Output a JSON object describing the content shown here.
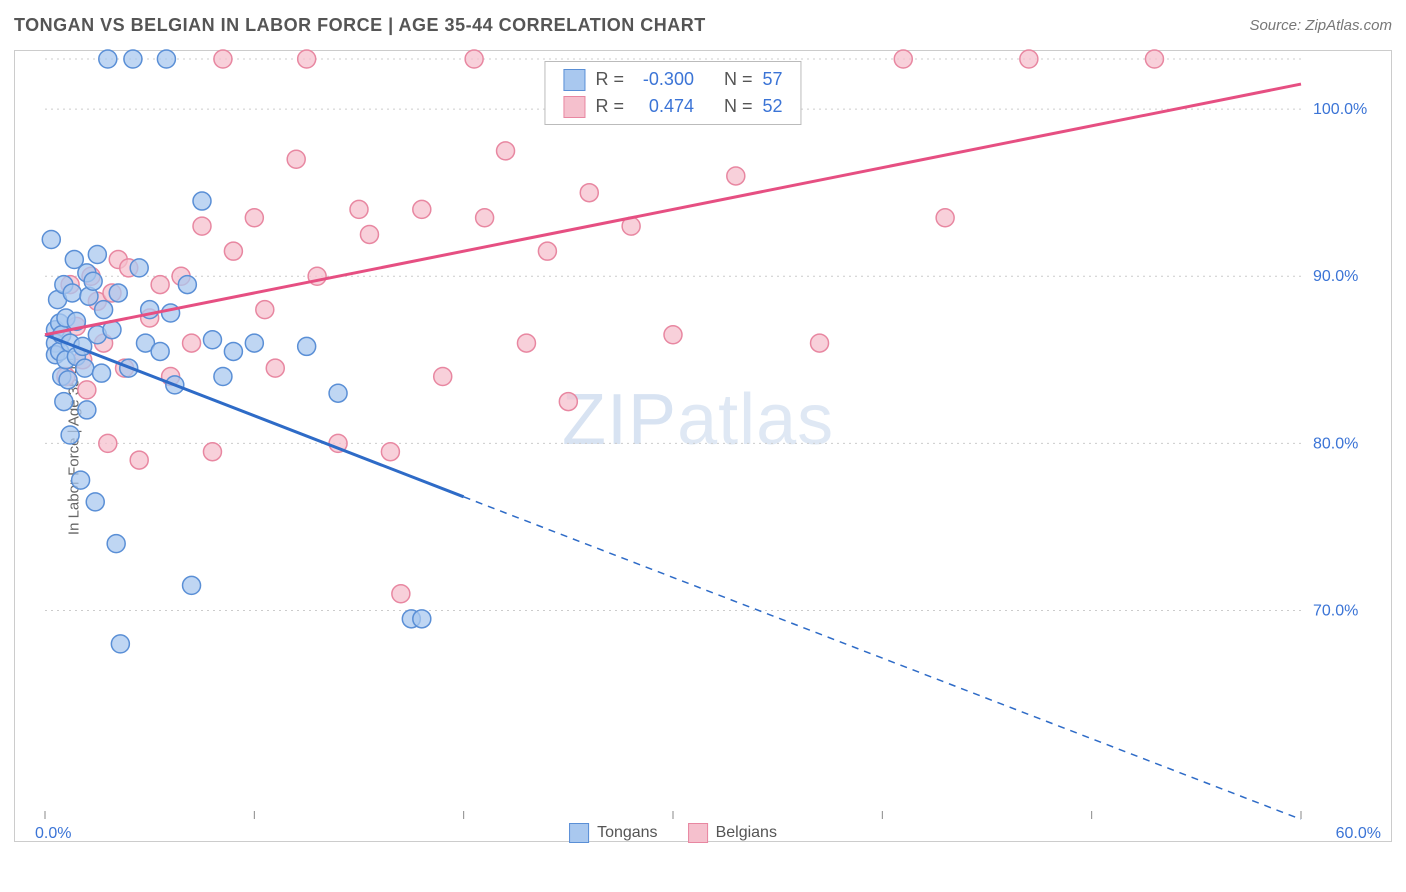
{
  "header": {
    "title": "TONGAN VS BELGIAN IN LABOR FORCE | AGE 35-44 CORRELATION CHART",
    "source": "Source: ZipAtlas.com"
  },
  "chart": {
    "type": "scatter",
    "ylabel": "In Labor Force | Age 35-44",
    "watermark_a": "ZIP",
    "watermark_b": "atlas",
    "xlim": [
      0,
      60
    ],
    "ylim": [
      58,
      103
    ],
    "x_ticks": [
      0,
      10,
      20,
      30,
      40,
      50,
      60
    ],
    "x_tick_labels": [
      "0.0%",
      "",
      "",
      "",
      "",
      "",
      "60.0%"
    ],
    "y_grid": [
      70,
      80,
      90,
      100,
      103
    ],
    "y_grid_labels": [
      "70.0%",
      "80.0%",
      "90.0%",
      "100.0%",
      ""
    ],
    "background_color": "#ffffff",
    "grid_color": "#cccccc",
    "marker_radius": 9,
    "marker_stroke_width": 1.5,
    "line_width": 3,
    "series": {
      "tongans": {
        "label": "Tongans",
        "fill": "#a9c8ef",
        "stroke": "#5a8fd6",
        "line_color": "#2e6bc7",
        "R_label": "R =",
        "R": "-0.300",
        "N_label": "N =",
        "N": "57",
        "trend": {
          "x1": 0,
          "y1": 86.5,
          "x2_solid": 20,
          "y2_solid": 76.8,
          "x2_dash": 60,
          "y2_dash": 57.5
        },
        "points": [
          [
            0.3,
            92.2
          ],
          [
            0.5,
            86.8
          ],
          [
            0.5,
            86.0
          ],
          [
            0.5,
            85.3
          ],
          [
            0.6,
            88.6
          ],
          [
            0.7,
            85.5
          ],
          [
            0.7,
            87.2
          ],
          [
            0.8,
            84.0
          ],
          [
            0.8,
            86.5
          ],
          [
            0.9,
            82.5
          ],
          [
            0.9,
            89.5
          ],
          [
            1.0,
            85.0
          ],
          [
            1.0,
            87.5
          ],
          [
            1.1,
            83.8
          ],
          [
            1.2,
            80.5
          ],
          [
            1.2,
            86.0
          ],
          [
            1.3,
            89.0
          ],
          [
            1.4,
            91.0
          ],
          [
            1.5,
            85.2
          ],
          [
            1.5,
            87.3
          ],
          [
            1.7,
            77.8
          ],
          [
            1.8,
            85.8
          ],
          [
            1.9,
            84.5
          ],
          [
            2.0,
            90.2
          ],
          [
            2.0,
            82.0
          ],
          [
            2.1,
            88.8
          ],
          [
            2.3,
            89.7
          ],
          [
            2.4,
            76.5
          ],
          [
            2.5,
            86.5
          ],
          [
            2.5,
            91.3
          ],
          [
            2.7,
            84.2
          ],
          [
            2.8,
            88.0
          ],
          [
            3.0,
            103.0
          ],
          [
            3.2,
            86.8
          ],
          [
            3.4,
            74.0
          ],
          [
            3.5,
            89.0
          ],
          [
            3.6,
            68.0
          ],
          [
            4.0,
            84.5
          ],
          [
            4.2,
            103.0
          ],
          [
            4.5,
            90.5
          ],
          [
            4.8,
            86.0
          ],
          [
            5.0,
            88.0
          ],
          [
            5.5,
            85.5
          ],
          [
            5.8,
            103.0
          ],
          [
            6.0,
            87.8
          ],
          [
            6.2,
            83.5
          ],
          [
            6.8,
            89.5
          ],
          [
            7.0,
            71.5
          ],
          [
            7.5,
            94.5
          ],
          [
            8.0,
            86.2
          ],
          [
            8.5,
            84.0
          ],
          [
            9.0,
            85.5
          ],
          [
            10.0,
            86.0
          ],
          [
            12.5,
            85.8
          ],
          [
            17.5,
            69.5
          ],
          [
            18.0,
            69.5
          ],
          [
            14.0,
            83.0
          ]
        ]
      },
      "belgians": {
        "label": "Belgians",
        "fill": "#f5c0cd",
        "stroke": "#e887a1",
        "line_color": "#e64f82",
        "R_label": "R =",
        "R": "0.474",
        "N_label": "N =",
        "N": "52",
        "trend": {
          "x1": 0,
          "y1": 86.5,
          "x2_solid": 60,
          "y2_solid": 101.5,
          "x2_dash": 60,
          "y2_dash": 101.5
        },
        "points": [
          [
            0.8,
            86.5
          ],
          [
            1.0,
            84.0
          ],
          [
            1.2,
            89.5
          ],
          [
            1.5,
            87.0
          ],
          [
            1.8,
            85.0
          ],
          [
            2.0,
            83.2
          ],
          [
            2.2,
            90.0
          ],
          [
            2.5,
            88.5
          ],
          [
            2.8,
            86.0
          ],
          [
            3.0,
            80.0
          ],
          [
            3.2,
            89.0
          ],
          [
            3.5,
            91.0
          ],
          [
            3.8,
            84.5
          ],
          [
            4.0,
            90.5
          ],
          [
            4.5,
            79.0
          ],
          [
            5.0,
            87.5
          ],
          [
            5.5,
            89.5
          ],
          [
            6.0,
            84.0
          ],
          [
            6.5,
            90.0
          ],
          [
            7.0,
            86.0
          ],
          [
            7.5,
            93.0
          ],
          [
            8.0,
            79.5
          ],
          [
            8.5,
            103.0
          ],
          [
            9.0,
            91.5
          ],
          [
            10.0,
            93.5
          ],
          [
            10.5,
            88.0
          ],
          [
            11.0,
            84.5
          ],
          [
            12.0,
            97.0
          ],
          [
            12.5,
            103.0
          ],
          [
            13.0,
            90.0
          ],
          [
            14.0,
            80.0
          ],
          [
            15.0,
            94.0
          ],
          [
            15.5,
            92.5
          ],
          [
            16.5,
            79.5
          ],
          [
            17.0,
            71.0
          ],
          [
            18.0,
            94.0
          ],
          [
            19.0,
            84.0
          ],
          [
            20.5,
            103.0
          ],
          [
            21.0,
            93.5
          ],
          [
            22.0,
            97.5
          ],
          [
            23.0,
            86.0
          ],
          [
            24.0,
            91.5
          ],
          [
            25.0,
            82.5
          ],
          [
            26.0,
            95.0
          ],
          [
            28.0,
            93.0
          ],
          [
            30.0,
            86.5
          ],
          [
            33.0,
            96.0
          ],
          [
            37.0,
            86.0
          ],
          [
            41.0,
            103.0
          ],
          [
            43.0,
            93.5
          ],
          [
            47.0,
            103.0
          ],
          [
            53.0,
            103.0
          ]
        ]
      }
    }
  }
}
